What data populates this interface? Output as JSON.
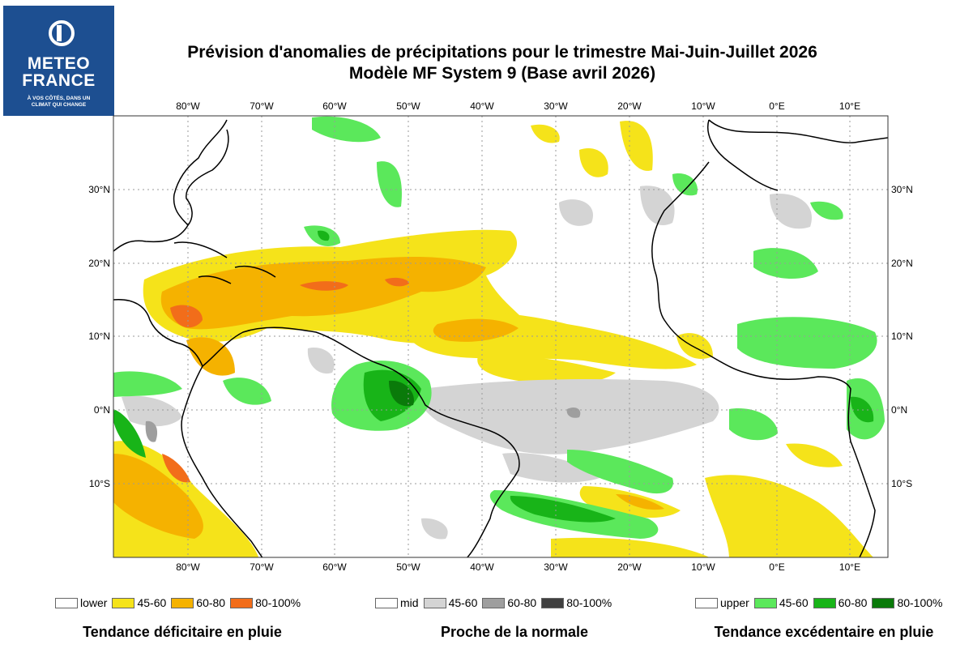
{
  "logo": {
    "line1": "METEO",
    "line2": "FRANCE",
    "tagline_1": "À VOS CÔTÉS, DANS UN",
    "tagline_2": "CLIMAT QUI CHANGE",
    "brand_color": "#1d4f91"
  },
  "title": {
    "line1": "Prévision d'anomalies de précipitations pour le trimestre Mai-Juin-Juillet 2026",
    "line2": "Modèle MF System 9 (Base avril 2026)"
  },
  "map": {
    "lon_labels": [
      "80°W",
      "70°W",
      "60°W",
      "50°W",
      "40°W",
      "30°W",
      "20°W",
      "10°W",
      "0°E",
      "10°E"
    ],
    "lat_labels": [
      "30°N",
      "20°N",
      "10°N",
      "0°N",
      "10°S"
    ],
    "colors": {
      "lower_45_60": "#f5e31a",
      "lower_60_80": "#f5b200",
      "lower_80_100": "#f26d1a",
      "mid_45_60": "#d4d4d4",
      "mid_60_80": "#9e9e9e",
      "mid_80_100": "#404040",
      "upper_45_60": "#5be85b",
      "upper_60_80": "#18b418",
      "upper_80_100": "#0a7a0a"
    }
  },
  "legend": {
    "lower": [
      {
        "label": "lower",
        "color": "#ffffff"
      },
      {
        "label": "45-60",
        "color": "#f5e31a"
      },
      {
        "label": "60-80",
        "color": "#f5b200"
      },
      {
        "label": "80-100%",
        "color": "#f26d1a"
      }
    ],
    "mid": [
      {
        "label": "mid",
        "color": "#ffffff"
      },
      {
        "label": "45-60",
        "color": "#d4d4d4"
      },
      {
        "label": "60-80",
        "color": "#9e9e9e"
      },
      {
        "label": "80-100%",
        "color": "#404040"
      }
    ],
    "upper": [
      {
        "label": "upper",
        "color": "#ffffff"
      },
      {
        "label": "45-60",
        "color": "#5be85b"
      },
      {
        "label": "60-80",
        "color": "#18b418"
      },
      {
        "label": "80-100%",
        "color": "#0a7a0a"
      }
    ]
  },
  "captions": {
    "lower": "Tendance déficitaire en pluie",
    "mid": "Proche de la normale",
    "upper": "Tendance excédentaire en pluie"
  }
}
